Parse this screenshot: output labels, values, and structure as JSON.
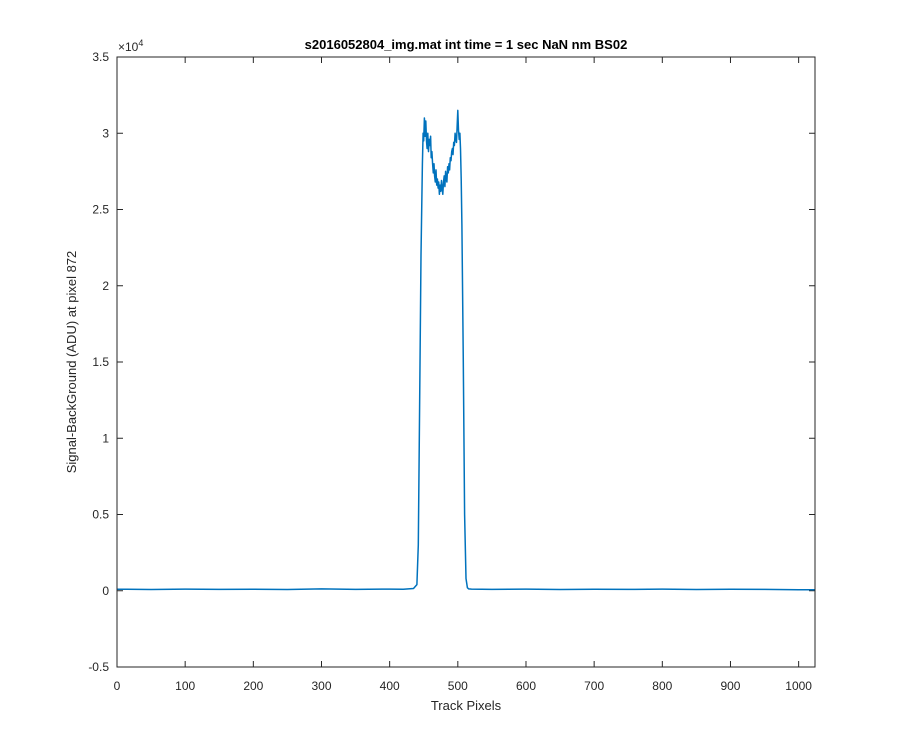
{
  "figure_background": "#ffffff",
  "chart_data": {
    "type": "line",
    "title": "s2016052804_img.mat int time = 1 sec  NaN nm BS02",
    "xlabel": "Track Pixels",
    "ylabel": "Signal-BackGround (ADU) at pixel 872",
    "xlim": [
      0,
      1024
    ],
    "ylim": [
      -5000,
      35000
    ],
    "y_exponent_label": "×10",
    "y_exponent": "4",
    "x_ticks": [
      0,
      100,
      200,
      300,
      400,
      500,
      600,
      700,
      800,
      900,
      1000
    ],
    "x_tick_labels": [
      "0",
      "100",
      "200",
      "300",
      "400",
      "500",
      "600",
      "700",
      "800",
      "900",
      "1000"
    ],
    "y_ticks": [
      -5000,
      0,
      5000,
      10000,
      15000,
      20000,
      25000,
      30000,
      35000
    ],
    "y_tick_labels": [
      "-0.5",
      "0",
      "0.5",
      "1",
      "1.5",
      "2",
      "2.5",
      "3",
      "3.5"
    ],
    "grid": false,
    "line_color": "#0072bd",
    "series": [
      {
        "x": [
          0,
          50,
          100,
          150,
          200,
          250,
          300,
          350,
          400,
          420,
          435,
          440,
          442,
          444,
          446,
          448,
          449,
          450,
          451,
          452,
          453,
          454,
          455,
          456,
          457,
          458,
          459,
          460,
          461,
          462,
          463,
          464,
          465,
          466,
          467,
          468,
          469,
          470,
          471,
          472,
          473,
          474,
          475,
          476,
          477,
          478,
          479,
          480,
          481,
          482,
          483,
          484,
          485,
          486,
          487,
          488,
          489,
          490,
          491,
          492,
          493,
          494,
          495,
          496,
          497,
          498,
          499,
          500,
          501,
          502,
          503,
          504,
          505,
          506,
          508,
          510,
          512,
          514,
          516,
          520,
          550,
          600,
          650,
          700,
          750,
          800,
          850,
          900,
          950,
          1000,
          1024
        ],
        "y": [
          100,
          80,
          110,
          90,
          100,
          80,
          120,
          90,
          110,
          100,
          150,
          400,
          3000,
          12000,
          22000,
          28000,
          30000,
          29500,
          31000,
          29800,
          30800,
          29500,
          29000,
          30000,
          28800,
          29600,
          29200,
          29800,
          28400,
          28800,
          28000,
          27400,
          28000,
          27200,
          26800,
          27600,
          26600,
          27000,
          26400,
          26800,
          26000,
          26600,
          26200,
          26900,
          26400,
          26000,
          26800,
          27200,
          26500,
          27500,
          27000,
          26800,
          27800,
          27400,
          28000,
          27600,
          28400,
          28200,
          28800,
          29000,
          28600,
          29400,
          29200,
          30000,
          29600,
          29400,
          30400,
          31500,
          30200,
          29600,
          30000,
          29000,
          27000,
          24000,
          15000,
          5000,
          800,
          200,
          120,
          110,
          90,
          110,
          80,
          100,
          90,
          110,
          80,
          100,
          90,
          70,
          60
        ]
      }
    ]
  }
}
